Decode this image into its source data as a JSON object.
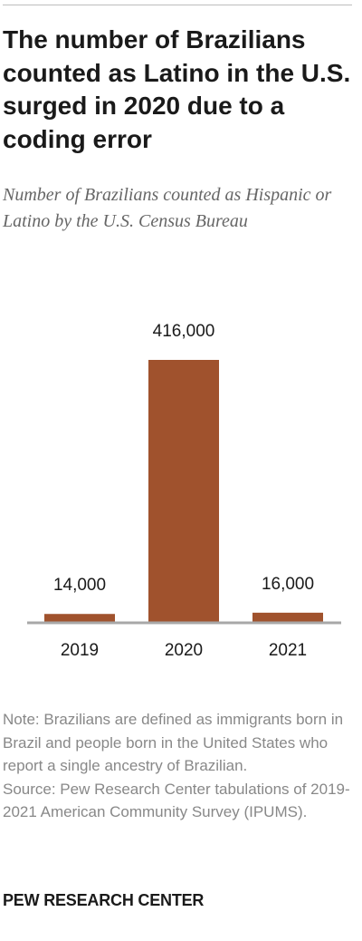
{
  "title": "The number of Brazilians counted as Latino in the U.S. surged in 2020 due to a coding error",
  "subtitle": "Number of Brazilians counted as Hispanic or Latino by the U.S. Census Bureau",
  "chart_data": {
    "type": "bar",
    "categories": [
      "2019",
      "2020",
      "2021"
    ],
    "values": [
      14000,
      416000,
      16000
    ],
    "data_labels": [
      "14,000",
      "416,000",
      "16,000"
    ],
    "bar_color": "#a0522d",
    "ylim": [
      0,
      416000
    ],
    "grid": false,
    "legend": "none"
  },
  "note": "Note: Brazilians are defined as immigrants born in Brazil and people born in the United States who report a single ancestry of Brazilian.",
  "source": "Source: Pew Research Center tabulations of 2019-2021 American Community Survey (IPUMS).",
  "brand": "PEW RESEARCH CENTER"
}
